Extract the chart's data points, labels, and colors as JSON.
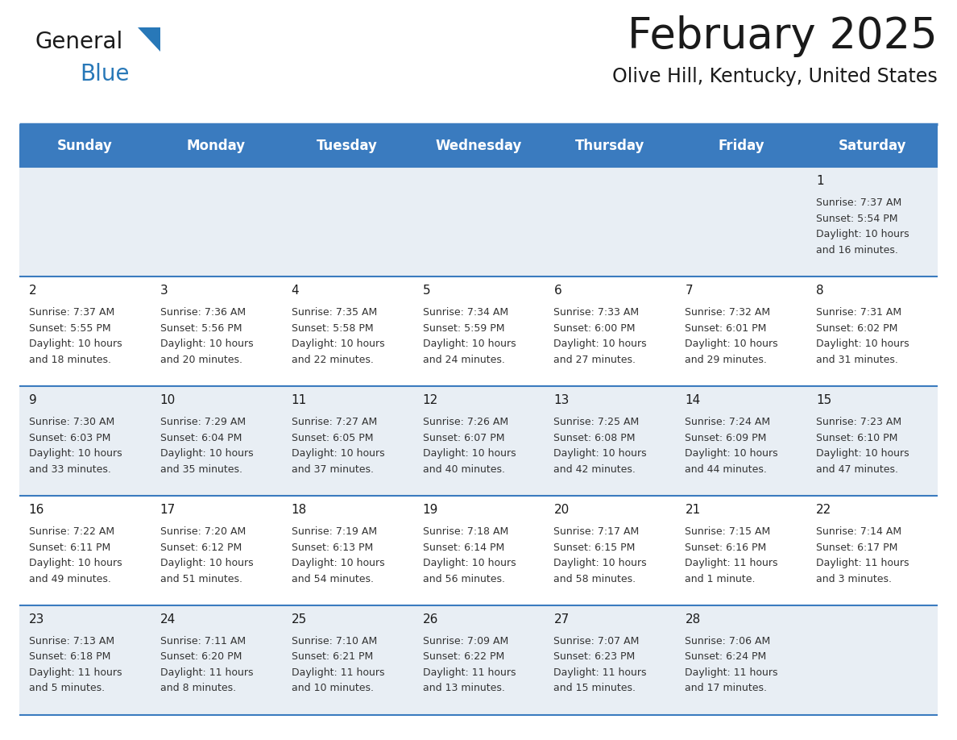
{
  "title": "February 2025",
  "subtitle": "Olive Hill, Kentucky, United States",
  "header_bg": "#3a7bbf",
  "header_text_color": "#ffffff",
  "cell_bg_odd": "#e8eef4",
  "cell_bg_even": "#ffffff",
  "border_color": "#3a7bbf",
  "text_color": "#333333",
  "day_names": [
    "Sunday",
    "Monday",
    "Tuesday",
    "Wednesday",
    "Thursday",
    "Friday",
    "Saturday"
  ],
  "days": [
    {
      "day": 1,
      "col": 6,
      "row": 0,
      "sunrise": "7:37 AM",
      "sunset": "5:54 PM",
      "daylight": "10 hours and 16 minutes."
    },
    {
      "day": 2,
      "col": 0,
      "row": 1,
      "sunrise": "7:37 AM",
      "sunset": "5:55 PM",
      "daylight": "10 hours and 18 minutes."
    },
    {
      "day": 3,
      "col": 1,
      "row": 1,
      "sunrise": "7:36 AM",
      "sunset": "5:56 PM",
      "daylight": "10 hours and 20 minutes."
    },
    {
      "day": 4,
      "col": 2,
      "row": 1,
      "sunrise": "7:35 AM",
      "sunset": "5:58 PM",
      "daylight": "10 hours and 22 minutes."
    },
    {
      "day": 5,
      "col": 3,
      "row": 1,
      "sunrise": "7:34 AM",
      "sunset": "5:59 PM",
      "daylight": "10 hours and 24 minutes."
    },
    {
      "day": 6,
      "col": 4,
      "row": 1,
      "sunrise": "7:33 AM",
      "sunset": "6:00 PM",
      "daylight": "10 hours and 27 minutes."
    },
    {
      "day": 7,
      "col": 5,
      "row": 1,
      "sunrise": "7:32 AM",
      "sunset": "6:01 PM",
      "daylight": "10 hours and 29 minutes."
    },
    {
      "day": 8,
      "col": 6,
      "row": 1,
      "sunrise": "7:31 AM",
      "sunset": "6:02 PM",
      "daylight": "10 hours and 31 minutes."
    },
    {
      "day": 9,
      "col": 0,
      "row": 2,
      "sunrise": "7:30 AM",
      "sunset": "6:03 PM",
      "daylight": "10 hours and 33 minutes."
    },
    {
      "day": 10,
      "col": 1,
      "row": 2,
      "sunrise": "7:29 AM",
      "sunset": "6:04 PM",
      "daylight": "10 hours and 35 minutes."
    },
    {
      "day": 11,
      "col": 2,
      "row": 2,
      "sunrise": "7:27 AM",
      "sunset": "6:05 PM",
      "daylight": "10 hours and 37 minutes."
    },
    {
      "day": 12,
      "col": 3,
      "row": 2,
      "sunrise": "7:26 AM",
      "sunset": "6:07 PM",
      "daylight": "10 hours and 40 minutes."
    },
    {
      "day": 13,
      "col": 4,
      "row": 2,
      "sunrise": "7:25 AM",
      "sunset": "6:08 PM",
      "daylight": "10 hours and 42 minutes."
    },
    {
      "day": 14,
      "col": 5,
      "row": 2,
      "sunrise": "7:24 AM",
      "sunset": "6:09 PM",
      "daylight": "10 hours and 44 minutes."
    },
    {
      "day": 15,
      "col": 6,
      "row": 2,
      "sunrise": "7:23 AM",
      "sunset": "6:10 PM",
      "daylight": "10 hours and 47 minutes."
    },
    {
      "day": 16,
      "col": 0,
      "row": 3,
      "sunrise": "7:22 AM",
      "sunset": "6:11 PM",
      "daylight": "10 hours and 49 minutes."
    },
    {
      "day": 17,
      "col": 1,
      "row": 3,
      "sunrise": "7:20 AM",
      "sunset": "6:12 PM",
      "daylight": "10 hours and 51 minutes."
    },
    {
      "day": 18,
      "col": 2,
      "row": 3,
      "sunrise": "7:19 AM",
      "sunset": "6:13 PM",
      "daylight": "10 hours and 54 minutes."
    },
    {
      "day": 19,
      "col": 3,
      "row": 3,
      "sunrise": "7:18 AM",
      "sunset": "6:14 PM",
      "daylight": "10 hours and 56 minutes."
    },
    {
      "day": 20,
      "col": 4,
      "row": 3,
      "sunrise": "7:17 AM",
      "sunset": "6:15 PM",
      "daylight": "10 hours and 58 minutes."
    },
    {
      "day": 21,
      "col": 5,
      "row": 3,
      "sunrise": "7:15 AM",
      "sunset": "6:16 PM",
      "daylight": "11 hours and 1 minute."
    },
    {
      "day": 22,
      "col": 6,
      "row": 3,
      "sunrise": "7:14 AM",
      "sunset": "6:17 PM",
      "daylight": "11 hours and 3 minutes."
    },
    {
      "day": 23,
      "col": 0,
      "row": 4,
      "sunrise": "7:13 AM",
      "sunset": "6:18 PM",
      "daylight": "11 hours and 5 minutes."
    },
    {
      "day": 24,
      "col": 1,
      "row": 4,
      "sunrise": "7:11 AM",
      "sunset": "6:20 PM",
      "daylight": "11 hours and 8 minutes."
    },
    {
      "day": 25,
      "col": 2,
      "row": 4,
      "sunrise": "7:10 AM",
      "sunset": "6:21 PM",
      "daylight": "11 hours and 10 minutes."
    },
    {
      "day": 26,
      "col": 3,
      "row": 4,
      "sunrise": "7:09 AM",
      "sunset": "6:22 PM",
      "daylight": "11 hours and 13 minutes."
    },
    {
      "day": 27,
      "col": 4,
      "row": 4,
      "sunrise": "7:07 AM",
      "sunset": "6:23 PM",
      "daylight": "11 hours and 15 minutes."
    },
    {
      "day": 28,
      "col": 5,
      "row": 4,
      "sunrise": "7:06 AM",
      "sunset": "6:24 PM",
      "daylight": "11 hours and 17 minutes."
    }
  ],
  "num_rows": 5,
  "num_cols": 7,
  "title_fontsize": 38,
  "subtitle_fontsize": 17,
  "header_fontsize": 12,
  "day_num_fontsize": 11,
  "info_fontsize": 9
}
